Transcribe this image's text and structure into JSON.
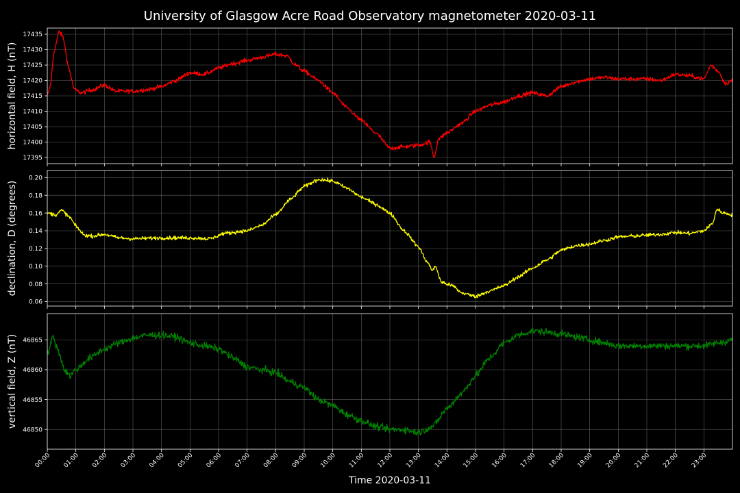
{
  "chart_data": {
    "type": "line",
    "title": "University of Glasgow Acre Road Observatory magnetometer 2020-03-11",
    "xlabel": "Time 2020-03-11",
    "x_tick_labels": [
      "00:00",
      "01:00",
      "02:00",
      "03:00",
      "04:00",
      "05:00",
      "06:00",
      "07:00",
      "08:00",
      "09:00",
      "10:00",
      "11:00",
      "12:00",
      "13:00",
      "14:00",
      "15:00",
      "16:00",
      "17:00",
      "18:00",
      "19:00",
      "20:00",
      "21:00",
      "22:00",
      "23:00"
    ],
    "xlim_hours": [
      0,
      24
    ],
    "grid": true,
    "background": "#000000",
    "panels": [
      {
        "name": "horizontal-field",
        "ylabel": "horizontal field, H (nT)",
        "color": "#ff0000",
        "ylim": [
          17393,
          17437
        ],
        "yticks": [
          17395,
          17400,
          17405,
          17410,
          17415,
          17420,
          17425,
          17430,
          17435
        ],
        "noise": 0.6,
        "series": [
          {
            "x": 0.0,
            "y": 17415
          },
          {
            "x": 0.1,
            "y": 17418
          },
          {
            "x": 0.25,
            "y": 17430
          },
          {
            "x": 0.42,
            "y": 17436
          },
          {
            "x": 0.55,
            "y": 17434
          },
          {
            "x": 0.75,
            "y": 17424
          },
          {
            "x": 0.95,
            "y": 17417
          },
          {
            "x": 1.2,
            "y": 17416
          },
          {
            "x": 1.6,
            "y": 17417
          },
          {
            "x": 2.0,
            "y": 17418.5
          },
          {
            "x": 2.4,
            "y": 17416.5
          },
          {
            "x": 3.0,
            "y": 17416.5
          },
          {
            "x": 3.5,
            "y": 17417
          },
          {
            "x": 4.0,
            "y": 17418
          },
          {
            "x": 4.5,
            "y": 17420
          },
          {
            "x": 5.0,
            "y": 17422.5
          },
          {
            "x": 5.5,
            "y": 17422
          },
          {
            "x": 6.0,
            "y": 17424
          },
          {
            "x": 6.5,
            "y": 17425.5
          },
          {
            "x": 7.0,
            "y": 17426.5
          },
          {
            "x": 7.5,
            "y": 17427.5
          },
          {
            "x": 8.0,
            "y": 17428.5
          },
          {
            "x": 8.4,
            "y": 17428
          },
          {
            "x": 8.7,
            "y": 17425
          },
          {
            "x": 9.0,
            "y": 17423
          },
          {
            "x": 9.5,
            "y": 17420
          },
          {
            "x": 10.0,
            "y": 17416
          },
          {
            "x": 10.5,
            "y": 17411
          },
          {
            "x": 11.0,
            "y": 17407
          },
          {
            "x": 11.5,
            "y": 17403
          },
          {
            "x": 12.0,
            "y": 17398
          },
          {
            "x": 12.5,
            "y": 17398.5
          },
          {
            "x": 13.0,
            "y": 17399
          },
          {
            "x": 13.4,
            "y": 17400
          },
          {
            "x": 13.55,
            "y": 17395
          },
          {
            "x": 13.7,
            "y": 17401
          },
          {
            "x": 14.0,
            "y": 17403
          },
          {
            "x": 14.5,
            "y": 17406
          },
          {
            "x": 15.0,
            "y": 17410
          },
          {
            "x": 15.5,
            "y": 17412
          },
          {
            "x": 16.0,
            "y": 17413
          },
          {
            "x": 16.5,
            "y": 17415
          },
          {
            "x": 17.0,
            "y": 17416
          },
          {
            "x": 17.5,
            "y": 17415
          },
          {
            "x": 18.0,
            "y": 17418
          },
          {
            "x": 18.5,
            "y": 17419.5
          },
          {
            "x": 19.0,
            "y": 17420.5
          },
          {
            "x": 19.5,
            "y": 17421
          },
          {
            "x": 20.0,
            "y": 17420.5
          },
          {
            "x": 20.5,
            "y": 17420.5
          },
          {
            "x": 21.0,
            "y": 17420.5
          },
          {
            "x": 21.5,
            "y": 17420
          },
          {
            "x": 22.0,
            "y": 17422
          },
          {
            "x": 22.5,
            "y": 17421.5
          },
          {
            "x": 23.0,
            "y": 17420.5
          },
          {
            "x": 23.25,
            "y": 17425
          },
          {
            "x": 23.5,
            "y": 17423
          },
          {
            "x": 23.75,
            "y": 17419
          },
          {
            "x": 24.0,
            "y": 17420
          }
        ]
      },
      {
        "name": "declination",
        "ylabel": "declination, D (degrees)",
        "color": "#ffff00",
        "ylim": [
          0.055,
          0.208
        ],
        "yticks": [
          0.06,
          0.08,
          0.1,
          0.12,
          0.14,
          0.16,
          0.18,
          0.2
        ],
        "noise": 0.0018,
        "series": [
          {
            "x": 0.0,
            "y": 0.16
          },
          {
            "x": 0.3,
            "y": 0.158
          },
          {
            "x": 0.5,
            "y": 0.163
          },
          {
            "x": 0.8,
            "y": 0.155
          },
          {
            "x": 1.0,
            "y": 0.145
          },
          {
            "x": 1.3,
            "y": 0.135
          },
          {
            "x": 1.6,
            "y": 0.134
          },
          {
            "x": 2.0,
            "y": 0.136
          },
          {
            "x": 2.5,
            "y": 0.132
          },
          {
            "x": 3.0,
            "y": 0.131
          },
          {
            "x": 4.0,
            "y": 0.132
          },
          {
            "x": 5.0,
            "y": 0.132
          },
          {
            "x": 5.7,
            "y": 0.131
          },
          {
            "x": 6.2,
            "y": 0.137
          },
          {
            "x": 7.0,
            "y": 0.14
          },
          {
            "x": 7.5,
            "y": 0.146
          },
          {
            "x": 8.0,
            "y": 0.158
          },
          {
            "x": 8.5,
            "y": 0.175
          },
          {
            "x": 9.0,
            "y": 0.19
          },
          {
            "x": 9.5,
            "y": 0.198
          },
          {
            "x": 10.0,
            "y": 0.196
          },
          {
            "x": 10.5,
            "y": 0.188
          },
          {
            "x": 11.0,
            "y": 0.178
          },
          {
            "x": 11.5,
            "y": 0.17
          },
          {
            "x": 12.0,
            "y": 0.16
          },
          {
            "x": 12.5,
            "y": 0.14
          },
          {
            "x": 13.0,
            "y": 0.122
          },
          {
            "x": 13.3,
            "y": 0.105
          },
          {
            "x": 13.5,
            "y": 0.095
          },
          {
            "x": 13.6,
            "y": 0.1
          },
          {
            "x": 13.8,
            "y": 0.082
          },
          {
            "x": 14.2,
            "y": 0.078
          },
          {
            "x": 14.5,
            "y": 0.07
          },
          {
            "x": 15.0,
            "y": 0.066
          },
          {
            "x": 15.5,
            "y": 0.072
          },
          {
            "x": 16.0,
            "y": 0.078
          },
          {
            "x": 16.5,
            "y": 0.088
          },
          {
            "x": 17.0,
            "y": 0.098
          },
          {
            "x": 17.5,
            "y": 0.107
          },
          {
            "x": 18.0,
            "y": 0.118
          },
          {
            "x": 18.5,
            "y": 0.123
          },
          {
            "x": 19.0,
            "y": 0.125
          },
          {
            "x": 19.5,
            "y": 0.129
          },
          {
            "x": 20.0,
            "y": 0.133
          },
          {
            "x": 20.5,
            "y": 0.134
          },
          {
            "x": 21.0,
            "y": 0.135
          },
          {
            "x": 21.5,
            "y": 0.136
          },
          {
            "x": 22.0,
            "y": 0.138
          },
          {
            "x": 22.5,
            "y": 0.137
          },
          {
            "x": 23.0,
            "y": 0.14
          },
          {
            "x": 23.3,
            "y": 0.148
          },
          {
            "x": 23.45,
            "y": 0.164
          },
          {
            "x": 23.7,
            "y": 0.16
          },
          {
            "x": 24.0,
            "y": 0.158
          }
        ]
      },
      {
        "name": "vertical-field",
        "ylabel": "vertical field, Z (nT)",
        "color": "#008000",
        "ylim": [
          46846.7,
          46869.4
        ],
        "yticks": [
          46850,
          46855,
          46860,
          46865
        ],
        "noise": 0.5,
        "series": [
          {
            "x": 0.0,
            "y": 46862.5
          },
          {
            "x": 0.2,
            "y": 46865.5
          },
          {
            "x": 0.4,
            "y": 46863
          },
          {
            "x": 0.6,
            "y": 46860
          },
          {
            "x": 0.8,
            "y": 46859
          },
          {
            "x": 1.0,
            "y": 46860
          },
          {
            "x": 1.5,
            "y": 46862
          },
          {
            "x": 2.0,
            "y": 46863.5
          },
          {
            "x": 2.5,
            "y": 46864.5
          },
          {
            "x": 3.0,
            "y": 46865.3
          },
          {
            "x": 3.5,
            "y": 46865.8
          },
          {
            "x": 4.0,
            "y": 46865.8
          },
          {
            "x": 4.5,
            "y": 46865.5
          },
          {
            "x": 5.0,
            "y": 46864.5
          },
          {
            "x": 5.5,
            "y": 46864
          },
          {
            "x": 6.0,
            "y": 46863.5
          },
          {
            "x": 6.5,
            "y": 46862
          },
          {
            "x": 7.0,
            "y": 46860.5
          },
          {
            "x": 7.5,
            "y": 46860
          },
          {
            "x": 8.0,
            "y": 46859.5
          },
          {
            "x": 8.5,
            "y": 46858
          },
          {
            "x": 9.0,
            "y": 46857
          },
          {
            "x": 9.5,
            "y": 46855
          },
          {
            "x": 10.0,
            "y": 46854
          },
          {
            "x": 10.5,
            "y": 46852.5
          },
          {
            "x": 11.0,
            "y": 46851.5
          },
          {
            "x": 11.5,
            "y": 46850.5
          },
          {
            "x": 12.0,
            "y": 46850
          },
          {
            "x": 12.5,
            "y": 46850
          },
          {
            "x": 13.0,
            "y": 46849.5
          },
          {
            "x": 13.5,
            "y": 46850.5
          },
          {
            "x": 14.0,
            "y": 46853.5
          },
          {
            "x": 14.5,
            "y": 46856
          },
          {
            "x": 15.0,
            "y": 46859
          },
          {
            "x": 15.5,
            "y": 46862
          },
          {
            "x": 16.0,
            "y": 46864.5
          },
          {
            "x": 16.5,
            "y": 46865.8
          },
          {
            "x": 17.0,
            "y": 46866.5
          },
          {
            "x": 17.5,
            "y": 46866.3
          },
          {
            "x": 18.0,
            "y": 46866
          },
          {
            "x": 18.5,
            "y": 46865.5
          },
          {
            "x": 19.0,
            "y": 46865
          },
          {
            "x": 19.5,
            "y": 46864.5
          },
          {
            "x": 20.0,
            "y": 46864
          },
          {
            "x": 21.0,
            "y": 46864
          },
          {
            "x": 22.0,
            "y": 46864
          },
          {
            "x": 23.0,
            "y": 46864
          },
          {
            "x": 23.5,
            "y": 46864.5
          },
          {
            "x": 24.0,
            "y": 46865
          }
        ]
      }
    ]
  }
}
